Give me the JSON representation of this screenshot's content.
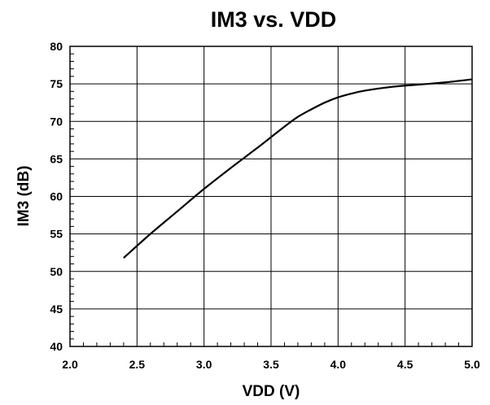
{
  "chart_data": {
    "type": "line",
    "title": "IM3 vs. VDD",
    "xlabel": "VDD (V)",
    "ylabel": "IM3 (dB)",
    "xlim": [
      2.0,
      5.0
    ],
    "ylim": [
      40,
      80
    ],
    "x_ticks": [
      "2.0",
      "2.5",
      "3.0",
      "3.5",
      "4.0",
      "4.5",
      "5.0"
    ],
    "y_ticks": [
      "40",
      "45",
      "50",
      "55",
      "60",
      "65",
      "70",
      "75",
      "80"
    ],
    "grid": true,
    "legend": "none",
    "series": [
      {
        "line_color": "#000000",
        "x": [
          2.4,
          2.6,
          2.8,
          3.0,
          3.2,
          3.4,
          3.5,
          3.6,
          3.7,
          3.8,
          3.9,
          4.0,
          4.1,
          4.2,
          4.4,
          4.6,
          4.8,
          5.0
        ],
        "y": [
          51.8,
          55.0,
          58.0,
          61.0,
          63.8,
          66.5,
          67.9,
          69.3,
          70.6,
          71.6,
          72.5,
          73.2,
          73.7,
          74.1,
          74.6,
          74.9,
          75.2,
          75.6
        ]
      }
    ]
  }
}
